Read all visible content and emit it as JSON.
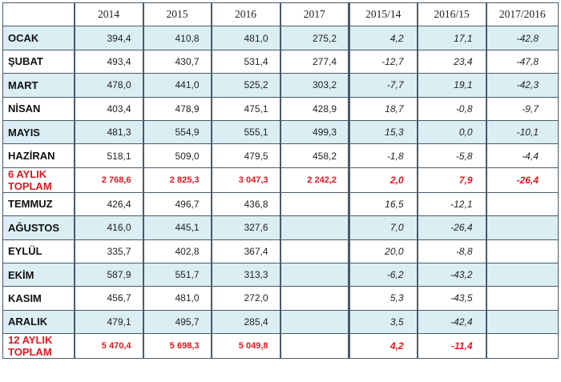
{
  "headers": [
    "",
    "2014",
    "2015",
    "2016",
    "2017",
    "2015/14",
    "2016/15",
    "2017/2016"
  ],
  "rows": [
    {
      "label": "OCAK",
      "v2014": "394,4",
      "v2015": "410,8",
      "v2016": "481,0",
      "v2017": "275,2",
      "p1514": "4,2",
      "p1615": "17,1",
      "p1716": "-42,8",
      "style": "shade"
    },
    {
      "label": "ŞUBAT",
      "v2014": "493,4",
      "v2015": "430,7",
      "v2016": "531,4",
      "v2017": "277,4",
      "p1514": "-12,7",
      "p1615": "23,4",
      "p1716": "-47,8",
      "style": "white"
    },
    {
      "label": "MART",
      "v2014": "478,0",
      "v2015": "441,0",
      "v2016": "525,2",
      "v2017": "303,2",
      "p1514": "-7,7",
      "p1615": "19,1",
      "p1716": "-42,3",
      "style": "shade"
    },
    {
      "label": "NİSAN",
      "v2014": "403,4",
      "v2015": "478,9",
      "v2016": "475,1",
      "v2017": "428,9",
      "p1514": "18,7",
      "p1615": "-0,8",
      "p1716": "-9,7",
      "style": "white"
    },
    {
      "label": "MAYIS",
      "v2014": "481,3",
      "v2015": "554,9",
      "v2016": "555,1",
      "v2017": "499,3",
      "p1514": "15,3",
      "p1615": "0,0",
      "p1716": "-10,1",
      "style": "shade"
    },
    {
      "label": "HAZİRAN",
      "v2014": "518,1",
      "v2015": "509,0",
      "v2016": "479,5",
      "v2017": "458,2",
      "p1514": "-1,8",
      "p1615": "-5,8",
      "p1716": "-4,4",
      "style": "white"
    },
    {
      "label": "6 AYLIK TOPLAM",
      "v2014": "2 768,6",
      "v2015": "2 825,3",
      "v2016": "3 047,3",
      "v2017": "2 242,2",
      "p1514": "2,0",
      "p1615": "7,9",
      "p1716": "-26,4",
      "style": "total"
    },
    {
      "label": "TEMMUZ",
      "v2014": "426,4",
      "v2015": "496,7",
      "v2016": "436,8",
      "v2017": "",
      "p1514": "16,5",
      "p1615": "-12,1",
      "p1716": "",
      "style": "white"
    },
    {
      "label": "AĞUSTOS",
      "v2014": "416,0",
      "v2015": "445,1",
      "v2016": "327,6",
      "v2017": "",
      "p1514": "7,0",
      "p1615": "-26,4",
      "p1716": "",
      "style": "shade"
    },
    {
      "label": "EYLÜL",
      "v2014": "335,7",
      "v2015": "402,8",
      "v2016": "367,4",
      "v2017": "",
      "p1514": "20,0",
      "p1615": "-8,8",
      "p1716": "",
      "style": "white"
    },
    {
      "label": "EKİM",
      "v2014": "587,9",
      "v2015": "551,7",
      "v2016": "313,3",
      "v2017": "",
      "p1514": "-6,2",
      "p1615": "-43,2",
      "p1716": "",
      "style": "shade"
    },
    {
      "label": "KASIM",
      "v2014": "456,7",
      "v2015": "481,0",
      "v2016": "272,0",
      "v2017": "",
      "p1514": "5,3",
      "p1615": "-43,5",
      "p1716": "",
      "style": "white"
    },
    {
      "label": "ARALIK",
      "v2014": "479,1",
      "v2015": "495,7",
      "v2016": "285,4",
      "v2017": "",
      "p1514": "3,5",
      "p1615": "-42,4",
      "p1716": "",
      "style": "shade"
    },
    {
      "label": "12 AYLIK TOPLAM",
      "v2014": "5 470,4",
      "v2015": "5 698,3",
      "v2016": "5 049,8",
      "v2017": "",
      "p1514": "4,2",
      "p1615": "-11,4",
      "p1716": "",
      "style": "total"
    }
  ],
  "colors": {
    "shade": "#daeef3",
    "total_text": "#e8141c",
    "border": "#4a5a6a"
  }
}
